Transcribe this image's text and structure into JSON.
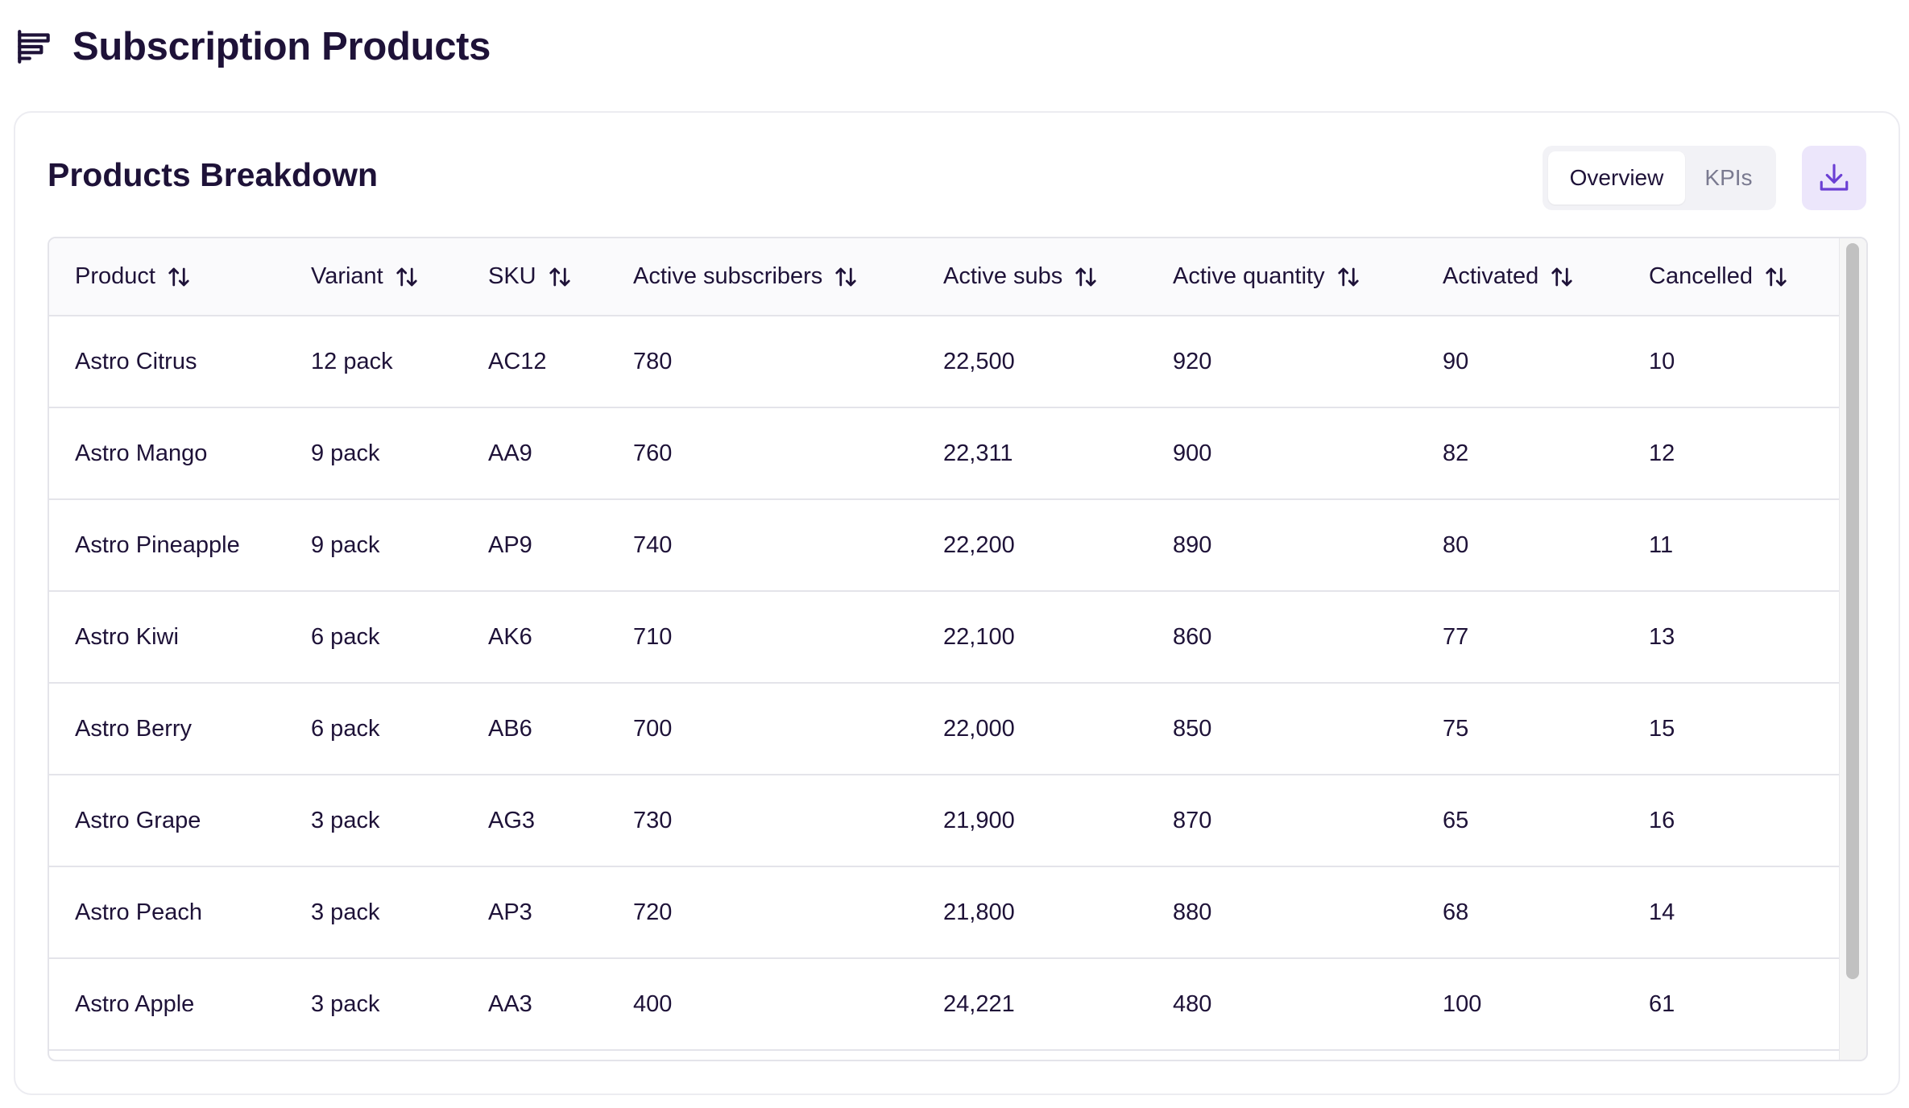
{
  "page": {
    "title": "Subscription Products",
    "icon": "report-list-icon"
  },
  "card": {
    "title": "Products Breakdown",
    "toggle": {
      "active": "Overview",
      "inactive": "KPIs"
    },
    "download_icon": "download-icon"
  },
  "colors": {
    "text": "#1e1238",
    "accent": "#6b3fd4",
    "accent_bg": "#ece6fb",
    "border": "#e4e4ea"
  },
  "table": {
    "columns": [
      "Product",
      "Variant",
      "SKU",
      "Active subscribers",
      "Active subs",
      "Active quantity",
      "Activated",
      "Cancelled"
    ],
    "rows": [
      [
        "Astro Citrus",
        "12 pack",
        "AC12",
        "780",
        "22,500",
        "920",
        "90",
        "10"
      ],
      [
        "Astro Mango",
        "9 pack",
        "AA9",
        "760",
        "22,311",
        "900",
        "82",
        "12"
      ],
      [
        "Astro Pineapple",
        "9 pack",
        "AP9",
        "740",
        "22,200",
        "890",
        "80",
        "11"
      ],
      [
        "Astro Kiwi",
        "6 pack",
        "AK6",
        "710",
        "22,100",
        "860",
        "77",
        "13"
      ],
      [
        "Astro Berry",
        "6 pack",
        "AB6",
        "700",
        "22,000",
        "850",
        "75",
        "15"
      ],
      [
        "Astro Grape",
        "3 pack",
        "AG3",
        "730",
        "21,900",
        "870",
        "65",
        "16"
      ],
      [
        "Astro Peach",
        "3 pack",
        "AP3",
        "720",
        "21,800",
        "880",
        "68",
        "14"
      ],
      [
        "Astro Apple",
        "3 pack",
        "AA3",
        "400",
        "24,221",
        "480",
        "100",
        "61"
      ]
    ]
  }
}
